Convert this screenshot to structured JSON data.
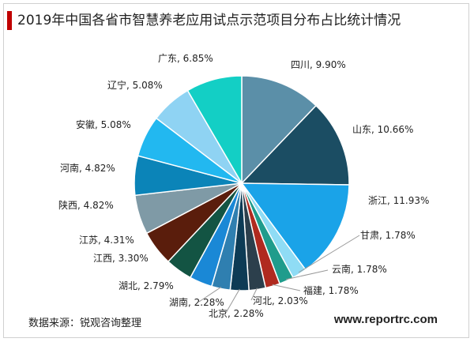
{
  "title": "2019年中国各省市智慧养老应用试点示范项目分布占比统计情况",
  "source": "数据来源：锐观咨询整理",
  "site": "www.reportrc.com",
  "chart_data": {
    "type": "pie",
    "title": "2019年中国各省市智慧养老应用试点示范项目分布占比统计情况",
    "unit": "%",
    "start_angle_deg": 0,
    "direction": "clockwise",
    "slices": [
      {
        "label": "四川",
        "value": 9.9,
        "display": "9.90%",
        "color": "#5b8fa8"
      },
      {
        "label": "山东",
        "value": 10.66,
        "display": "10.66%",
        "color": "#1b4d63"
      },
      {
        "label": "浙江",
        "value": 11.93,
        "display": "11.93%",
        "color": "#1aa3e8"
      },
      {
        "label": "甘肃",
        "value": 1.78,
        "display": "1.78%",
        "color": "#8fdcf5"
      },
      {
        "label": "云南",
        "value": 1.78,
        "display": "1.78%",
        "color": "#1f9c8c"
      },
      {
        "label": "福建",
        "value": 1.78,
        "display": "1.78%",
        "color": "#b02a1f"
      },
      {
        "label": "河北",
        "value": 2.03,
        "display": "2.03%",
        "color": "#2c3f4c"
      },
      {
        "label": "北京",
        "value": 2.28,
        "display": "2.28%",
        "color": "#0d3b55"
      },
      {
        "label": "湖南",
        "value": 2.28,
        "display": "2.28%",
        "color": "#2f7fb0"
      },
      {
        "label": "湖北",
        "value": 2.79,
        "display": "2.79%",
        "color": "#1a88d6"
      },
      {
        "label": "江西",
        "value": 3.3,
        "display": "3.30%",
        "color": "#135443"
      },
      {
        "label": "江苏",
        "value": 4.31,
        "display": "4.31%",
        "color": "#5a1d0c"
      },
      {
        "label": "陕西",
        "value": 4.82,
        "display": "4.82%",
        "color": "#7f9aa6"
      },
      {
        "label": "河南",
        "value": 4.82,
        "display": "4.82%",
        "color": "#0b84b8"
      },
      {
        "label": "安徽",
        "value": 5.08,
        "display": "5.08%",
        "color": "#22b8f0"
      },
      {
        "label": "辽宁",
        "value": 5.08,
        "display": "5.08%",
        "color": "#8fd3f3"
      },
      {
        "label": "广东",
        "value": 6.85,
        "display": "6.85%",
        "color": "#13cfc5"
      }
    ]
  }
}
